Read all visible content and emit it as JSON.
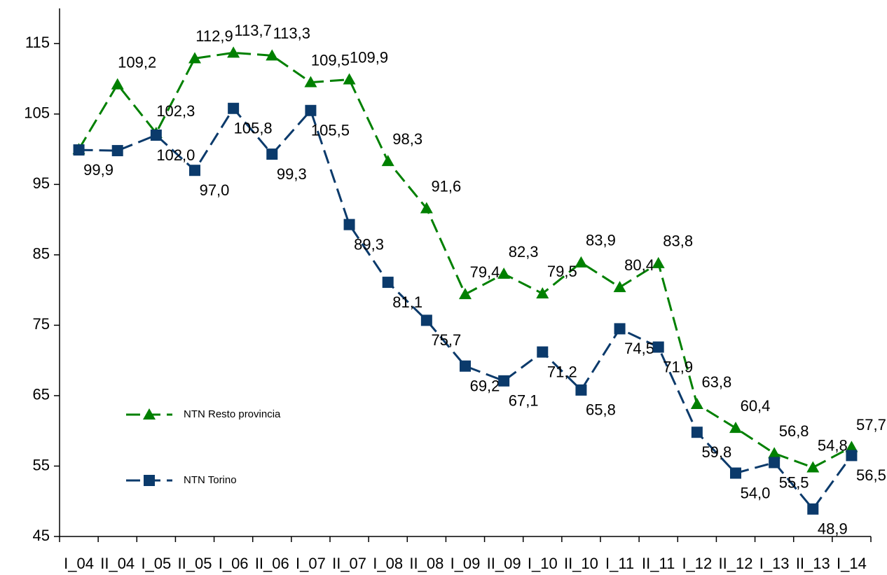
{
  "chart_data": {
    "type": "line",
    "categories": [
      "I_04",
      "II_04",
      "I_05",
      "II_05",
      "I_06",
      "II_06",
      "I_07",
      "II_07",
      "I_08",
      "II_08",
      "I_09",
      "II_09",
      "I_10",
      "II_10",
      "I_11",
      "II_11",
      "I_12",
      "II_12",
      "I_13",
      "II_13",
      "I_14"
    ],
    "series": [
      {
        "name": "NTN Resto provincia",
        "color": "#008000",
        "marker": "triangle",
        "values": [
          100.0,
          109.2,
          102.3,
          112.9,
          113.7,
          113.3,
          109.5,
          109.9,
          98.3,
          91.6,
          79.4,
          82.3,
          79.5,
          83.9,
          80.4,
          83.8,
          63.8,
          60.4,
          56.8,
          54.8,
          57.7
        ],
        "value_labels": [
          null,
          "109,2",
          "102,3",
          "112,9",
          "113,7",
          "113,3",
          "109,5",
          "109,9",
          "98,3",
          "91,6",
          "79,4",
          "82,3",
          "79,5",
          "83,9",
          "80,4",
          "83,8",
          "63,8",
          "60,4",
          "56,8",
          "54,8",
          "57,7"
        ]
      },
      {
        "name": "NTN Torino",
        "color": "#0b3a6b",
        "marker": "square",
        "values": [
          99.9,
          99.8,
          102.0,
          97.0,
          105.8,
          99.3,
          105.5,
          89.3,
          81.1,
          75.7,
          69.2,
          67.1,
          71.2,
          65.8,
          74.5,
          71.9,
          59.8,
          54.0,
          55.5,
          48.9,
          56.5
        ],
        "value_labels": [
          "99,9",
          null,
          "102,0",
          "97,0",
          "105,8",
          "99,3",
          "105,5",
          "89,3",
          "81,1",
          "75,7",
          "69,2",
          "67,1",
          "71,2",
          "65,8",
          "74,5",
          "71,9",
          "59,8",
          "54,0",
          "55,5",
          "48,9",
          "56,5"
        ]
      }
    ],
    "ylim": [
      45,
      120
    ],
    "yticks": [
      45,
      55,
      65,
      75,
      85,
      95,
      105,
      115
    ]
  }
}
